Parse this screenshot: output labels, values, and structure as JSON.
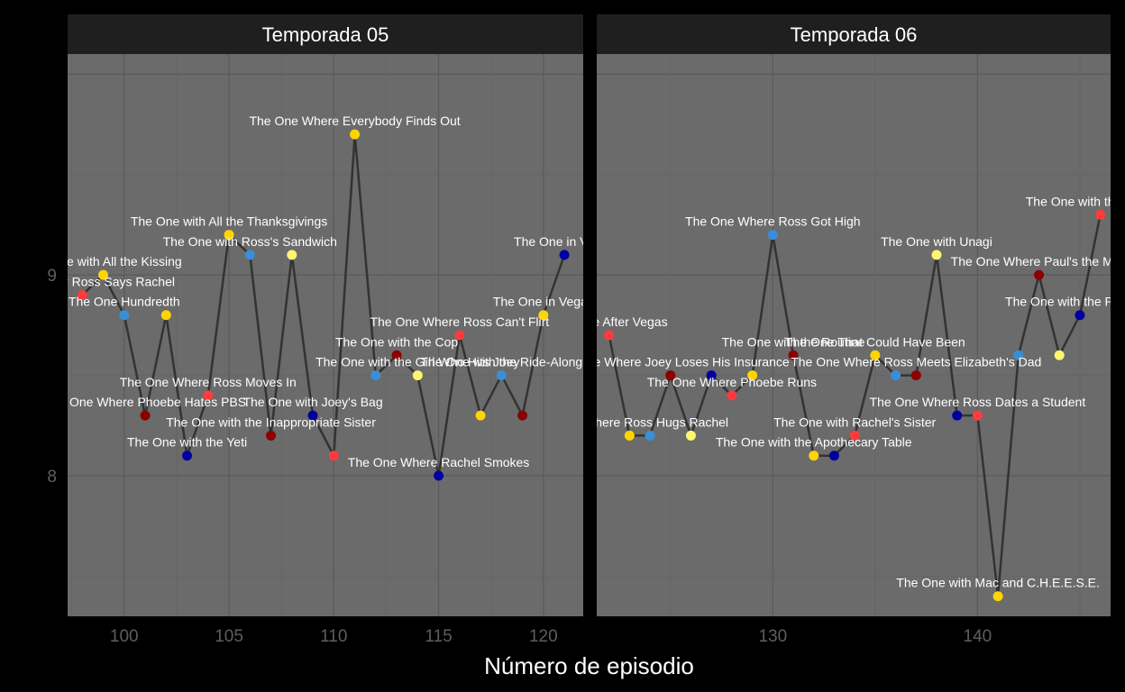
{
  "colors": {
    "background": "#000000",
    "panel": "#6b6b6b",
    "strip": "#1f1f1f",
    "grid_major": "#5a5a5a",
    "grid_minor": "#656565",
    "line": "#333333",
    "label": "#ffffff",
    "axis_text": "#5e5e5e",
    "xlabel": "#ffffff",
    "palette": [
      "#ff3b3b",
      "#ffd500",
      "#3a8ed8",
      "#8b0000",
      "#0000a0",
      "#fff570"
    ]
  },
  "chart_data": {
    "type": "line",
    "xlabel": "Número de episodio",
    "ylabel": "",
    "ylim": [
      7.3,
      10.1
    ],
    "yticks": [
      8,
      9
    ],
    "grid": true,
    "legend": "none",
    "panels": [
      {
        "title": "Temporada 05",
        "xlim": [
          97.3,
          121.9
        ],
        "xticks": [
          100,
          105,
          110,
          115,
          120
        ],
        "points": [
          {
            "x": 98,
            "y": 8.9,
            "label": "The One After Ross Says Rachel",
            "c": 0
          },
          {
            "x": 99,
            "y": 9.0,
            "label": "The One with All the Kissing",
            "c": 1
          },
          {
            "x": 100,
            "y": 8.8,
            "label": "The One Hundredth",
            "c": 2
          },
          {
            "x": 101,
            "y": 8.3,
            "label": "The One Where Phoebe Hates PBS",
            "c": 3
          },
          {
            "x": 102,
            "y": 8.8,
            "label": "",
            "c": 1
          },
          {
            "x": 103,
            "y": 8.1,
            "label": "The One with the Yeti",
            "c": 4
          },
          {
            "x": 104,
            "y": 8.4,
            "label": "The One Where Ross Moves In",
            "c": 0
          },
          {
            "x": 105,
            "y": 9.2,
            "label": "The One with All the Thanksgivings",
            "c": 1
          },
          {
            "x": 106,
            "y": 9.1,
            "label": "The One with Ross's Sandwich",
            "c": 2
          },
          {
            "x": 107,
            "y": 8.2,
            "label": "The One with the Inappropriate Sister",
            "c": 3
          },
          {
            "x": 108,
            "y": 9.1,
            "label": "",
            "c": 5
          },
          {
            "x": 109,
            "y": 8.3,
            "label": "The One with Joey's Bag",
            "c": 4
          },
          {
            "x": 110,
            "y": 8.1,
            "label": "",
            "c": 0
          },
          {
            "x": 111,
            "y": 9.7,
            "label": "The One Where Everybody Finds Out",
            "c": 1
          },
          {
            "x": 112,
            "y": 8.5,
            "label": "",
            "c": 2
          },
          {
            "x": 113,
            "y": 8.6,
            "label": "The One with the Cop",
            "c": 3
          },
          {
            "x": 114,
            "y": 8.5,
            "label": "The One with the Girl Who Hits Joey",
            "c": 5
          },
          {
            "x": 115,
            "y": 8.0,
            "label": "The One Where Rachel Smokes",
            "c": 4
          },
          {
            "x": 116,
            "y": 8.7,
            "label": "The One Where Ross Can't Flirt",
            "c": 0
          },
          {
            "x": 117,
            "y": 8.3,
            "label": "",
            "c": 1
          },
          {
            "x": 118,
            "y": 8.5,
            "label": "The One with the Ride-Along",
            "c": 2
          },
          {
            "x": 119,
            "y": 8.3,
            "label": "",
            "c": 3
          },
          {
            "x": 120,
            "y": 8.8,
            "label": "The One in Vegas",
            "c": 1
          },
          {
            "x": 121,
            "y": 9.1,
            "label": "The One in Vegas",
            "c": 4
          }
        ]
      },
      {
        "title": "Temporada 06",
        "xlim": [
          121.4,
          146.5
        ],
        "xticks": [
          130,
          140
        ],
        "points": [
          {
            "x": 122,
            "y": 8.7,
            "label": "The One After Vegas",
            "c": 0
          },
          {
            "x": 123,
            "y": 8.2,
            "label": "The One Where Ross Hugs Rachel",
            "c": 1
          },
          {
            "x": 124,
            "y": 8.2,
            "label": "",
            "c": 2
          },
          {
            "x": 125,
            "y": 8.5,
            "label": "The One Where Joey Loses His Insurance",
            "c": 3
          },
          {
            "x": 126,
            "y": 8.2,
            "label": "",
            "c": 5
          },
          {
            "x": 127,
            "y": 8.5,
            "label": "",
            "c": 4
          },
          {
            "x": 128,
            "y": 8.4,
            "label": "The One Where Phoebe Runs",
            "c": 0
          },
          {
            "x": 129,
            "y": 8.5,
            "label": "",
            "c": 1
          },
          {
            "x": 130,
            "y": 9.2,
            "label": "The One Where Ross Got High",
            "c": 2
          },
          {
            "x": 131,
            "y": 8.6,
            "label": "The One with the Routine",
            "c": 3
          },
          {
            "x": 132,
            "y": 8.1,
            "label": "The One with the Apothecary Table",
            "c": 1
          },
          {
            "x": 133,
            "y": 8.1,
            "label": "",
            "c": 4
          },
          {
            "x": 134,
            "y": 8.2,
            "label": "The One with Rachel's Sister",
            "c": 0
          },
          {
            "x": 135,
            "y": 8.6,
            "label": "The One That Could Have Been",
            "c": 1
          },
          {
            "x": 136,
            "y": 8.5,
            "label": "",
            "c": 2
          },
          {
            "x": 137,
            "y": 8.5,
            "label": "The One Where Ross Meets Elizabeth's Dad",
            "c": 3
          },
          {
            "x": 138,
            "y": 9.1,
            "label": "The One with Unagi",
            "c": 5
          },
          {
            "x": 139,
            "y": 8.3,
            "label": "",
            "c": 4
          },
          {
            "x": 140,
            "y": 8.3,
            "label": "The One Where Ross Dates a Student",
            "c": 0
          },
          {
            "x": 141,
            "y": 7.4,
            "label": "The One with Mac and C.H.E.E.S.E.",
            "c": 1
          },
          {
            "x": 142,
            "y": 8.6,
            "label": "",
            "c": 2
          },
          {
            "x": 143,
            "y": 9.0,
            "label": "The One Where Paul's the Man",
            "c": 3
          },
          {
            "x": 144,
            "y": 8.6,
            "label": "",
            "c": 5
          },
          {
            "x": 145,
            "y": 8.8,
            "label": "The One with the Proposal",
            "c": 4
          },
          {
            "x": 146,
            "y": 9.3,
            "label": "The One with the Proposal",
            "c": 0
          }
        ]
      }
    ]
  }
}
